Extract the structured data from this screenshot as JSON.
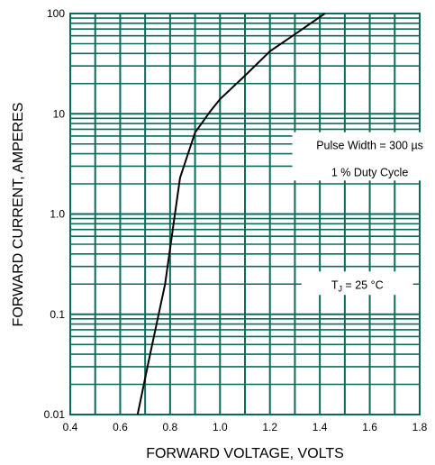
{
  "chart_data": {
    "type": "line",
    "xlabel": "FORWARD VOLTAGE, VOLTS",
    "ylabel": "FORWARD CURRENT, AMPERES",
    "xlim": [
      0.4,
      1.8
    ],
    "ylim": [
      0.01,
      100
    ],
    "yscale": "log",
    "grid": true,
    "x_ticks": [
      "0.4",
      "0.6",
      "0.8",
      "1.0",
      "1.2",
      "1.4",
      "1.6",
      "1.8"
    ],
    "y_ticks": [
      "0.01",
      "0.1",
      "1.0",
      "10",
      "100"
    ],
    "series": [
      {
        "x": [
          0.67,
          0.72,
          0.78,
          0.84,
          0.9,
          0.96,
          1.0,
          1.1,
          1.2,
          1.3,
          1.42
        ],
        "y": [
          0.01,
          0.04,
          0.2,
          2.3,
          6.5,
          10.5,
          14,
          24,
          42,
          62,
          100
        ]
      }
    ],
    "annotations": [
      {
        "text": "Pulse Width = 300 µs",
        "x": 1.6,
        "y": 4.8
      },
      {
        "text": "1 % Duty Cycle",
        "x": 1.6,
        "y": 2.6
      },
      {
        "text": "T",
        "sub": "J",
        "rest": " = 25 °C",
        "x": 1.55,
        "y": 0.2
      }
    ],
    "colors": {
      "grid": "#0a6b5b",
      "curve": "#000000",
      "frame": "#0a6b5b"
    }
  }
}
